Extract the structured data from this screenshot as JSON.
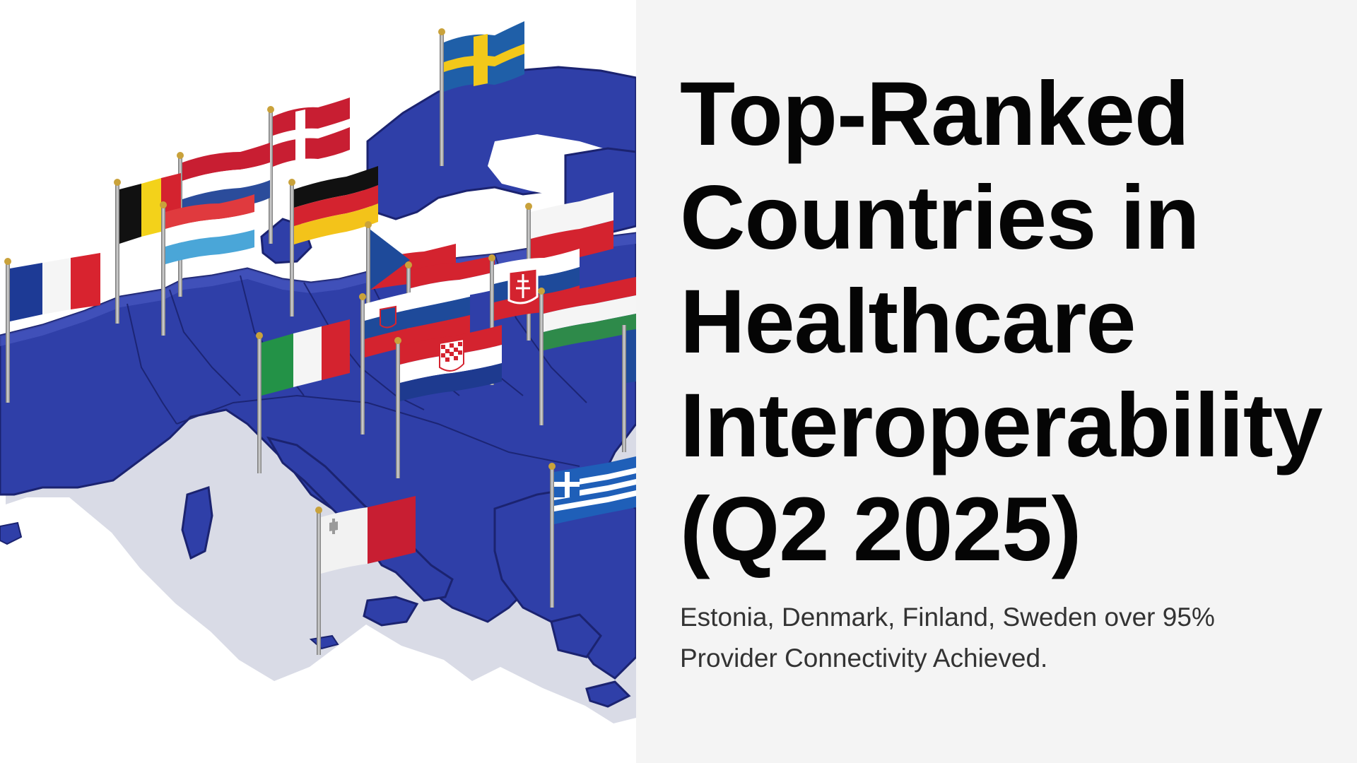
{
  "hero": {
    "image_name": "europe-map-with-flags"
  },
  "headline": {
    "lines": [
      "Top-Ranked",
      "Countries in",
      "Healthcare",
      "Interoperability",
      "(Q2 2025)"
    ]
  },
  "subtext": "Estonia, Denmark, Finland, Sweden over 95% Provider Connectivity Achieved.",
  "colors": {
    "map_blue": "#2f3fa8",
    "map_edge": "#1b2370",
    "panel_bg": "#f4f4f4",
    "headline": "#050505",
    "subtext": "#333333"
  }
}
